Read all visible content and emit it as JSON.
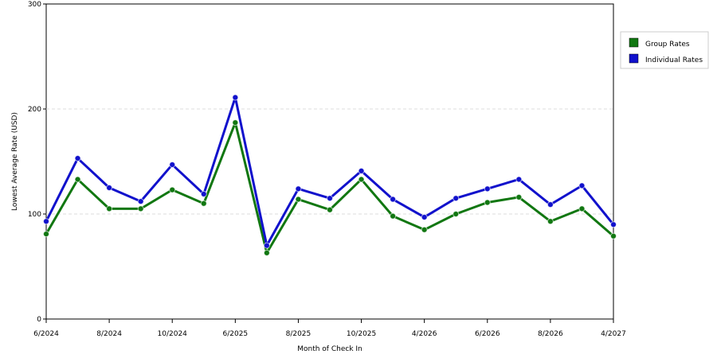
{
  "chart_data": {
    "type": "line",
    "title": "",
    "xlabel": "Month of Check In",
    "ylabel": "Lowest Average Rate (USD)",
    "ylim": [
      0,
      300
    ],
    "yticks": [
      "0",
      "100",
      "200",
      "300"
    ],
    "x_tick_labels": [
      "6/2024",
      "8/2024",
      "10/2024",
      "6/2025",
      "8/2025",
      "10/2025",
      "4/2026",
      "6/2026",
      "8/2026",
      "4/2027"
    ],
    "grid": true,
    "legend_position": "right",
    "series": [
      {
        "name": "Group Rates",
        "color": "#117711",
        "values": [
          81,
          133,
          105,
          105,
          123,
          110,
          187,
          63,
          114,
          104,
          133,
          98,
          85,
          100,
          111,
          116,
          93,
          105,
          79
        ]
      },
      {
        "name": "Individual Rates",
        "color": "#1111cc",
        "values": [
          93,
          153,
          125,
          112,
          147,
          119,
          211,
          70,
          124,
          115,
          141,
          114,
          97,
          115,
          124,
          133,
          109,
          127,
          90
        ]
      }
    ]
  }
}
